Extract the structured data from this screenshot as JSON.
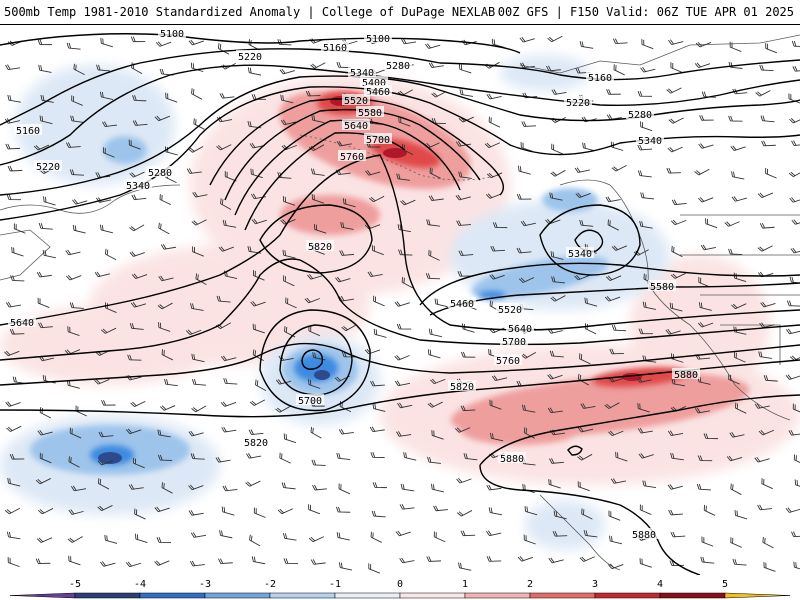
{
  "header": {
    "title_left": "500mb Temp 1981-2010 Standardized Anomaly | College of DuPage NEXLAB",
    "title_right": "00Z GFS | F150 Valid: 06Z TUE APR 01 2025"
  },
  "map": {
    "background_color": "#ffffff",
    "contour_color": "#000000",
    "coast_color": "#5a5a5a",
    "contours": [
      {
        "value": "5100",
        "labels": [
          [
            172,
            9
          ],
          [
            378,
            14
          ]
        ]
      },
      {
        "value": "5160",
        "labels": [
          [
            335,
            23
          ],
          [
            600,
            53
          ],
          [
            28,
            106
          ]
        ]
      },
      {
        "value": "5220",
        "labels": [
          [
            250,
            32
          ],
          [
            578,
            78
          ],
          [
            48,
            142
          ]
        ]
      },
      {
        "value": "5280",
        "labels": [
          [
            398,
            41
          ],
          [
            640,
            90
          ],
          [
            160,
            148
          ]
        ]
      },
      {
        "value": "5340",
        "labels": [
          [
            362,
            48
          ],
          [
            650,
            116
          ],
          [
            138,
            161
          ],
          [
            580,
            229
          ]
        ]
      },
      {
        "value": "5400",
        "labels": [
          [
            374,
            58
          ]
        ]
      },
      {
        "value": "5460",
        "labels": [
          [
            378,
            67
          ],
          [
            462,
            279
          ]
        ]
      },
      {
        "value": "5520",
        "labels": [
          [
            356,
            76
          ],
          [
            510,
            285
          ]
        ]
      },
      {
        "value": "5580",
        "labels": [
          [
            370,
            88
          ],
          [
            662,
            262
          ]
        ]
      },
      {
        "value": "5640",
        "labels": [
          [
            356,
            101
          ],
          [
            22,
            298
          ],
          [
            520,
            304
          ]
        ]
      },
      {
        "value": "5700",
        "labels": [
          [
            378,
            115
          ],
          [
            514,
            317
          ],
          [
            310,
            376
          ]
        ]
      },
      {
        "value": "5760",
        "labels": [
          [
            352,
            132
          ],
          [
            508,
            336
          ]
        ]
      },
      {
        "value": "5820",
        "labels": [
          [
            320,
            222
          ],
          [
            462,
            362
          ],
          [
            256,
            418
          ]
        ]
      },
      {
        "value": "5880",
        "labels": [
          [
            686,
            350
          ],
          [
            512,
            434
          ],
          [
            644,
            510
          ]
        ]
      }
    ],
    "anomaly_palette": {
      "-5": "#6a3d9a",
      "-4": "#2e4b8f",
      "-3": "#3f8fe0",
      "-2": "#8fbce8",
      "-1": "#d6e4f4",
      "0": "#ffffff",
      "1": "#f6d0d0",
      "2": "#ee9a9a",
      "3": "#e04a4a",
      "4": "#b71c2c",
      "5": "#f0c020"
    }
  },
  "colorbar": {
    "tick_labels": [
      "-5",
      "-4",
      "-3",
      "-2",
      "-1",
      "0",
      "1",
      "2",
      "3",
      "4",
      "5"
    ],
    "bins": [
      {
        "color": "#6a3d9a"
      },
      {
        "color": "#2b3f78"
      },
      {
        "color": "#2f6fc4"
      },
      {
        "color": "#6fa6e0"
      },
      {
        "color": "#b8d2ee"
      },
      {
        "color": "#e8eff8"
      },
      {
        "color": "#fbe6e6"
      },
      {
        "color": "#f1b4b4"
      },
      {
        "color": "#e56b6b"
      },
      {
        "color": "#c52834"
      },
      {
        "color": "#8b0e1c"
      },
      {
        "color": "#f0c020"
      }
    ]
  }
}
